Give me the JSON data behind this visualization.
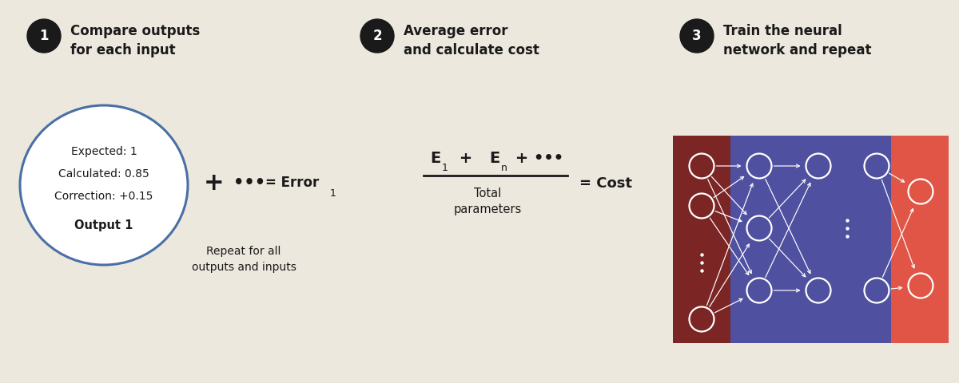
{
  "bg_color": "#ede8de",
  "text_color": "#1a1a1a",
  "step1_title": "Compare outputs\nfor each input",
  "step2_title": "Average error\nand calculate cost",
  "step3_title": "Train the neural\nnetwork and repeat",
  "circle_stroke": "#4a6fa5",
  "circle_fill": "#ffffff",
  "ellipse_text": [
    "Expected: 1",
    "Calculated: 0.85",
    "Correction: +0.15",
    "Output 1"
  ],
  "formula1_sub": "Repeat for all\noutputs and inputs",
  "nn_dark_red": "#7b2525",
  "nn_blue": "#5050a0",
  "nn_red": "#e05545",
  "nn_white": "#ffffff"
}
